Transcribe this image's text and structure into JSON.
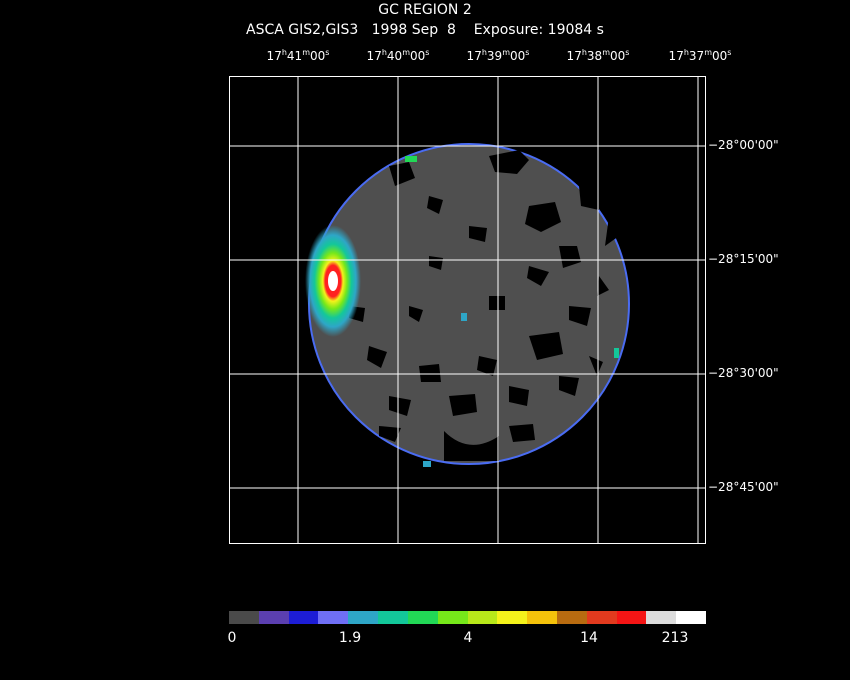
{
  "header": {
    "title": "GC REGION 2",
    "subtitle": "ASCA GIS2,GIS3   1998 Sep  8    Exposure: 19084 s"
  },
  "ra_ticks": [
    {
      "h": "17",
      "m": "41",
      "s": "00"
    },
    {
      "h": "17",
      "m": "40",
      "s": "00"
    },
    {
      "h": "17",
      "m": "39",
      "s": "00"
    },
    {
      "h": "17",
      "m": "38",
      "s": "00"
    },
    {
      "h": "17",
      "m": "37",
      "s": "00"
    }
  ],
  "dec_ticks": [
    "−28°00'00\"",
    "−28°15'00\"",
    "−28°30'00\"",
    "−28°45'00\""
  ],
  "colorbar": {
    "colors": [
      "#4a4a4a",
      "#5b3fb0",
      "#1d1dd6",
      "#6f6ff5",
      "#2ea6c7",
      "#13c79a",
      "#22d856",
      "#76e81a",
      "#b8e81a",
      "#f5f21b",
      "#f5c20b",
      "#b86b10",
      "#e23a1e",
      "#f51515",
      "#dcdcdc",
      "#ffffff"
    ],
    "labels": [
      "0",
      "1.9",
      "4",
      "14",
      "213"
    ]
  },
  "colors": {
    "background": "#000000",
    "grid": "#ffffff",
    "field": "#555555",
    "hole": "#000000"
  }
}
